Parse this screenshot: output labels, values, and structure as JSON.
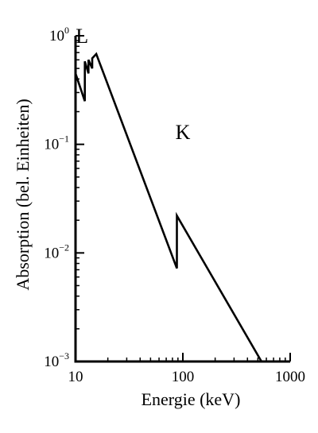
{
  "chart_data": {
    "type": "line",
    "title": "",
    "xlabel": "Energie (keV)",
    "ylabel": "Absorption (bel. Einheiten)",
    "xscale": "log",
    "yscale": "log",
    "xlim": [
      10,
      1000
    ],
    "ylim": [
      0.001,
      1
    ],
    "x_ticks": [
      {
        "value": 10,
        "label": "10"
      },
      {
        "value": 100,
        "label": "100"
      },
      {
        "value": 1000,
        "label": "1000"
      }
    ],
    "y_ticks": [
      {
        "value": 0.001,
        "base": "10",
        "exp": "−3"
      },
      {
        "value": 0.01,
        "base": "10",
        "exp": "−2"
      },
      {
        "value": 0.1,
        "base": "10",
        "exp": "−1"
      },
      {
        "value": 1,
        "base": "10",
        "exp": "0"
      }
    ],
    "grid": false,
    "series": [
      {
        "x": [
          10,
          12.2,
          12.2,
          13.2,
          13.2,
          14.3,
          14.3,
          15.6,
          88,
          88,
          540
        ],
        "y": [
          0.45,
          0.25,
          0.58,
          0.45,
          0.6,
          0.5,
          0.62,
          0.68,
          0.0072,
          0.022,
          0.001
        ]
      }
    ],
    "annotations": [
      {
        "text": "L",
        "x": 11.5,
        "y": 1.0
      },
      {
        "text": "K",
        "x": 100,
        "y": 0.13
      }
    ],
    "line_color": "#000000"
  }
}
